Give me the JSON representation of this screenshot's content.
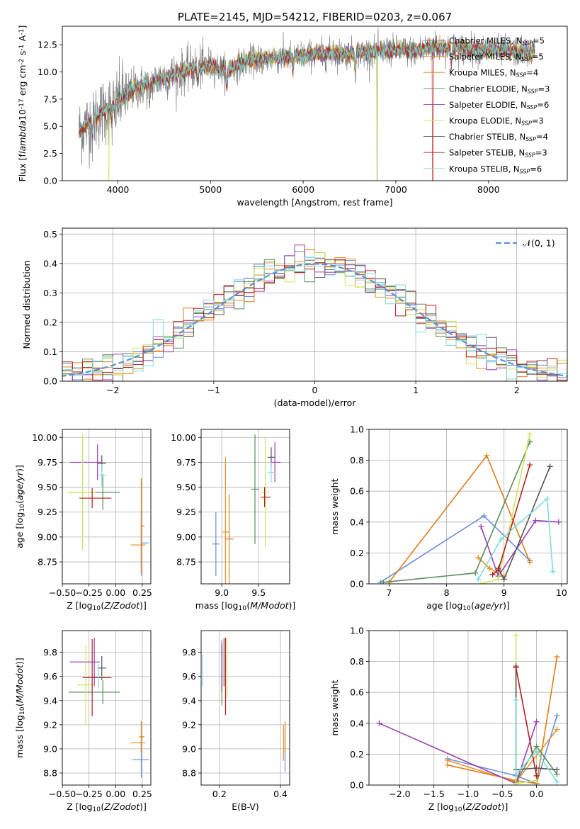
{
  "colors": {
    "observed": "#808080",
    "models": [
      "#6a8fdc",
      "#e8922a",
      "#de7f1c",
      "#5a8f5a",
      "#9b3fb5",
      "#c9e85a",
      "#555555",
      "#b41e1e",
      "#7fdcdc"
    ],
    "normal_curve": "#5b8fd6"
  },
  "chart_data": [
    {
      "id": "spectrum",
      "type": "line",
      "title": "PLATE=2145, MJD=54212, FIBERID=0203, z=0.067",
      "xlabel": "wavelength [Angstrom, rest frame]",
      "ylabel": "Flux [f$_\\lambda$10$^{-17}$ erg cm$^{-2}$ s$^{-1}$ A$^{-1}$]",
      "xlim": [
        3400,
        8850
      ],
      "ylim": [
        0,
        14.2
      ],
      "xticks": [
        "4000",
        "5000",
        "6000",
        "7000",
        "8000"
      ],
      "yticks": [
        "0.0",
        "2.5",
        "5.0",
        "7.5",
        "10.0",
        "12.5"
      ],
      "grid": false,
      "legend_position": "top-right",
      "legend": [
        {
          "name": "Chabrier MILES",
          "n": "5"
        },
        {
          "name": "Salpeter MILES",
          "n": "5"
        },
        {
          "name": "Kroupa MILES",
          "n": "4"
        },
        {
          "name": "Chabrier ELODIE",
          "n": "3"
        },
        {
          "name": "Salpeter ELODIE",
          "n": "6"
        },
        {
          "name": "Kroupa ELODIE",
          "n": "3"
        },
        {
          "name": "Chabrier STELIB",
          "n": "4"
        },
        {
          "name": "Salpeter STELIB",
          "n": "3"
        },
        {
          "name": "Kroupa STELIB",
          "n": "6"
        }
      ],
      "continuum": {
        "x": [
          3580,
          3650,
          3750,
          3850,
          3950,
          4100,
          4300,
          4500,
          4700,
          4860,
          5000,
          5175,
          5400,
          5600,
          5800,
          6000,
          6300,
          6563,
          6800,
          7000,
          7200,
          7400,
          7600,
          7800,
          8000,
          8200,
          8500
        ],
        "y": [
          4.5,
          5.0,
          5.8,
          6.4,
          6.9,
          8.2,
          8.8,
          9.5,
          10.0,
          10.4,
          10.6,
          10.1,
          11.0,
          11.2,
          11.4,
          11.5,
          11.7,
          11.7,
          11.9,
          12.0,
          11.9,
          12.3,
          12.2,
          12.1,
          12.0,
          11.9,
          11.8
        ]
      }
    },
    {
      "id": "residuals",
      "type": "line",
      "xlabel": "(data-model)/error",
      "ylabel": "Normed distribution",
      "xlim": [
        -2.5,
        2.5
      ],
      "ylim": [
        0,
        0.52
      ],
      "xticks": [
        "−2",
        "−1",
        "0",
        "1",
        "2"
      ],
      "yticks": [
        "0.0",
        "0.1",
        "0.2",
        "0.3",
        "0.4",
        "0.5"
      ],
      "grid": true,
      "legend_position": "top-right",
      "legend_label": "𝒩(0, 1)",
      "bin_width": 0.1
    },
    {
      "id": "z_age",
      "type": "scatter",
      "xlabel": "Z [log$_{10}$($Z/Z_\\odot$)]",
      "ylabel": "age  [log$_{10}$($age/yr$)]",
      "xlim": [
        -0.5,
        0.33
      ],
      "ylim": [
        8.53,
        10.08
      ],
      "xticks": [
        "−0.50",
        "−0.25",
        "0.00",
        "0.25"
      ],
      "xtick_values": [
        -0.5,
        -0.25,
        0,
        0.25
      ],
      "yticks": [
        "8.75",
        "9.00",
        "9.25",
        "9.50",
        "9.75",
        "10.00"
      ],
      "ytick_values": [
        8.75,
        9.0,
        9.25,
        9.5,
        9.75,
        10.0
      ],
      "grid": true,
      "points": [
        {
          "x": 0.24,
          "y": 8.94,
          "xerr": [
            0.0,
            0.07
          ],
          "yerr": 0.33
        },
        {
          "x": 0.24,
          "y": 8.92,
          "xerr": [
            0.1,
            0.04
          ],
          "yerr": 0.2
        },
        {
          "x": 0.24,
          "y": 9.11,
          "xerr": [
            0.0,
            0.03
          ],
          "yerr": 0.48
        },
        {
          "x": -0.12,
          "y": 9.45,
          "xerr": [
            0.32,
            0.16
          ],
          "yerr": 0.18
        },
        {
          "x": -0.17,
          "y": 9.75,
          "xerr": [
            0.26,
            0.03
          ],
          "yerr": 0.18
        },
        {
          "x": -0.31,
          "y": 9.45,
          "xerr": [
            0.14,
            0.12
          ],
          "yerr": 0.58
        },
        {
          "x": -0.13,
          "y": 9.74,
          "xerr": [
            0.04,
            0.04
          ],
          "yerr": 0.08
        },
        {
          "x": -0.22,
          "y": 9.39,
          "xerr": [
            0.12,
            0.18
          ],
          "yerr": 0.1
        },
        {
          "x": -0.13,
          "y": 9.62,
          "xerr": [
            0.03,
            0.04
          ],
          "yerr": 0.11
        }
      ]
    },
    {
      "id": "mass_age",
      "type": "scatter",
      "xlabel": "mass [log$_{10}$($M/M_\\odot$)]",
      "ylabel": "",
      "xlim": [
        8.72,
        9.92
      ],
      "ylim": [
        8.53,
        10.08
      ],
      "xticks": [
        "9.0",
        "9.5"
      ],
      "xtick_values": [
        9.0,
        9.5
      ],
      "yticks": [
        "8.75",
        "9.00",
        "9.25",
        "9.50",
        "9.75",
        "10.00"
      ],
      "ytick_values": [
        8.75,
        9.0,
        9.25,
        9.5,
        9.75,
        10.0
      ],
      "grid": true,
      "points": [
        {
          "x": 8.92,
          "y": 8.93,
          "xerr": [
            0.05,
            0.05
          ],
          "yerr": 0.32
        },
        {
          "x": 9.05,
          "y": 9.05,
          "xerr": [
            0.05,
            0.05
          ],
          "yerr": 0.75
        },
        {
          "x": 9.1,
          "y": 8.98,
          "xerr": [
            0.06,
            0.06
          ],
          "yerr": 0.45
        },
        {
          "x": 9.45,
          "y": 9.48,
          "xerr": [
            0.05,
            0.05
          ],
          "yerr": 0.55
        },
        {
          "x": 9.72,
          "y": 9.75,
          "xerr": [
            0.05,
            0.08
          ],
          "yerr": 0.2
        },
        {
          "x": 9.59,
          "y": 9.45,
          "xerr": [
            0.05,
            0.05
          ],
          "yerr": 0.55
        },
        {
          "x": 9.67,
          "y": 9.8,
          "xerr": [
            0.05,
            0.05
          ],
          "yerr": 0.1
        },
        {
          "x": 9.58,
          "y": 9.4,
          "xerr": [
            0.05,
            0.08
          ],
          "yerr": 0.1
        },
        {
          "x": 9.67,
          "y": 9.65,
          "xerr": [
            0.05,
            0.05
          ],
          "yerr": 0.1
        }
      ]
    },
    {
      "id": "age_weight",
      "type": "line",
      "xlabel": "age  [log$_{10}$($age/yr$)]",
      "ylabel": "mass weight",
      "xlim": [
        6.65,
        10.1
      ],
      "ylim": [
        0,
        1.0
      ],
      "xticks": [
        "7",
        "8",
        "9",
        "10"
      ],
      "xtick_values": [
        7,
        8,
        9,
        10
      ],
      "yticks": [
        "0.0",
        "0.2",
        "0.4",
        "0.6",
        "0.8",
        "1.0"
      ],
      "ytick_values": [
        0,
        0.2,
        0.4,
        0.6,
        0.8,
        1.0
      ],
      "grid": true,
      "series": [
        {
          "x": [
            6.85,
            8.65,
            9.45
          ],
          "y": [
            0.01,
            0.44,
            0.15
          ]
        },
        {
          "x": [
            8.55,
            8.75,
            9.0
          ],
          "y": [
            0.17,
            0.1,
            0.05
          ]
        },
        {
          "x": [
            7.0,
            8.7,
            9.45
          ],
          "y": [
            0.01,
            0.83,
            0.14
          ]
        },
        {
          "x": [
            6.9,
            8.5,
            9.45
          ],
          "y": [
            0.01,
            0.07,
            0.92
          ]
        },
        {
          "x": [
            8.6,
            8.9,
            9.55,
            9.95
          ],
          "y": [
            0.37,
            0.05,
            0.41,
            0.4
          ]
        },
        {
          "x": [
            8.6,
            8.9,
            9.45
          ],
          "y": [
            0.0,
            0.03,
            0.97
          ]
        },
        {
          "x": [
            8.9,
            9.0,
            9.8
          ],
          "y": [
            0.1,
            0.03,
            0.76
          ]
        },
        {
          "x": [
            8.8,
            8.9,
            9.45
          ],
          "y": [
            0.06,
            0.09,
            0.77
          ]
        },
        {
          "x": [
            8.55,
            8.95,
            9.75,
            9.85
          ],
          "y": [
            0.03,
            0.29,
            0.55,
            0.08
          ]
        }
      ]
    },
    {
      "id": "z_mass",
      "type": "scatter",
      "xlabel": "Z [log$_{10}$($Z/Z_\\odot$)]",
      "ylabel": "mass [log$_{10}$($M/M_\\odot$)]",
      "xlim": [
        -0.5,
        0.33
      ],
      "ylim": [
        8.7,
        9.98
      ],
      "xticks": [
        "−0.50",
        "−0.25",
        "0.00",
        "0.25"
      ],
      "xtick_values": [
        -0.5,
        -0.25,
        0,
        0.25
      ],
      "yticks": [
        "8.8",
        "9.0",
        "9.2",
        "9.4",
        "9.6",
        "9.8"
      ],
      "ytick_values": [
        8.8,
        9.0,
        9.2,
        9.4,
        9.6,
        9.8
      ],
      "grid": true,
      "points": [
        {
          "x": 0.24,
          "y": 8.91,
          "xerr": [
            0.08,
            0.07
          ],
          "yerr": 0.15
        },
        {
          "x": 0.24,
          "y": 9.05,
          "xerr": [
            0.1,
            0.04
          ],
          "yerr": 0.07
        },
        {
          "x": 0.24,
          "y": 9.1,
          "xerr": [
            0.02,
            0.03
          ],
          "yerr": 0.13
        },
        {
          "x": -0.12,
          "y": 9.47,
          "xerr": [
            0.32,
            0.16
          ],
          "yerr": 0.1
        },
        {
          "x": -0.2,
          "y": 9.72,
          "xerr": [
            0.23,
            0.05
          ],
          "yerr": 0.2
        },
        {
          "x": -0.28,
          "y": 9.53,
          "xerr": [
            0.08,
            0.08
          ],
          "yerr": 0.33
        },
        {
          "x": -0.13,
          "y": 9.67,
          "xerr": [
            0.04,
            0.04
          ],
          "yerr": 0.1
        },
        {
          "x": -0.22,
          "y": 9.59,
          "xerr": [
            0.09,
            0.18
          ],
          "yerr": 0.32
        },
        {
          "x": -0.16,
          "y": 9.6,
          "xerr": [
            0.03,
            0.04
          ],
          "yerr": 0.1
        }
      ]
    },
    {
      "id": "ebv_mass",
      "type": "scatter",
      "xlabel": "E(B-V)",
      "ylabel": "",
      "xlim": [
        0.14,
        0.43
      ],
      "ylim": [
        8.7,
        9.98
      ],
      "xticks": [
        "0.2",
        "0.4"
      ],
      "xtick_values": [
        0.2,
        0.4
      ],
      "yticks": [
        "8.8",
        "9.0",
        "9.2",
        "9.4",
        "9.6",
        "9.8"
      ],
      "ytick_values": [
        8.8,
        9.0,
        9.2,
        9.4,
        9.6,
        9.8
      ],
      "grid": true,
      "points": [
        {
          "x": 0.415,
          "y": 8.96,
          "yerr": 0.15
        },
        {
          "x": 0.41,
          "y": 9.05,
          "yerr": 0.15
        },
        {
          "x": 0.415,
          "y": 9.1,
          "yerr": 0.13
        },
        {
          "x": 0.208,
          "y": 9.63,
          "yerr": 0.27
        },
        {
          "x": 0.215,
          "y": 9.72,
          "yerr": 0.2
        },
        {
          "x": 0.225,
          "y": 9.67,
          "yerr": 0.25
        },
        {
          "x": 0.208,
          "y": 9.67,
          "yerr": 0.2
        },
        {
          "x": 0.22,
          "y": 9.6,
          "yerr": 0.32
        },
        {
          "x": 0.145,
          "y": 9.65,
          "yerr": 0.13
        }
      ]
    },
    {
      "id": "z_weight",
      "type": "line",
      "xlabel": "Z [log$_{10}$($Z/Z_\\odot$)]",
      "ylabel": "mass weight",
      "xlim": [
        -2.45,
        0.45
      ],
      "ylim": [
        0,
        1.0
      ],
      "xticks": [
        "−2.0",
        "−1.5",
        "−1.0",
        "−0.5",
        "0.0"
      ],
      "xtick_values": [
        -2.0,
        -1.5,
        -1.0,
        -0.5,
        0.0
      ],
      "yticks": [
        "0.0",
        "0.2",
        "0.4",
        "0.6",
        "0.8",
        "1.0"
      ],
      "ytick_values": [
        0,
        0.2,
        0.4,
        0.6,
        0.8,
        1.0
      ],
      "grid": true,
      "series": [
        {
          "x": [
            -1.3,
            -0.3,
            0.0,
            0.3
          ],
          "y": [
            0.17,
            0.06,
            0.01,
            0.45
          ]
        },
        {
          "x": [
            -1.3,
            -0.3,
            0.3
          ],
          "y": [
            0.16,
            0.02,
            0.36
          ]
        },
        {
          "x": [
            -1.3,
            -0.3,
            0.0,
            0.3
          ],
          "y": [
            0.13,
            0.03,
            0.01,
            0.83
          ]
        },
        {
          "x": [
            -0.3,
            0.0,
            0.3
          ],
          "y": [
            0.02,
            0.25,
            0.07
          ]
        },
        {
          "x": [
            -2.3,
            -0.3,
            0.0
          ],
          "y": [
            0.4,
            0.01,
            0.41
          ]
        },
        {
          "x": [
            -0.3,
            -0.3,
            0.0
          ],
          "y": [
            0.97,
            0.01,
            0.03
          ]
        },
        {
          "x": [
            -0.3,
            -0.3,
            0.0,
            0.3
          ],
          "y": [
            0.77,
            0.1,
            0.11,
            0.1
          ]
        },
        {
          "x": [
            -0.3,
            0.0
          ],
          "y": [
            0.76,
            0.06
          ]
        },
        {
          "x": [
            -0.3,
            -0.3,
            0.0,
            0.3
          ],
          "y": [
            0.55,
            0.07,
            0.22,
            0.02
          ]
        }
      ]
    }
  ]
}
